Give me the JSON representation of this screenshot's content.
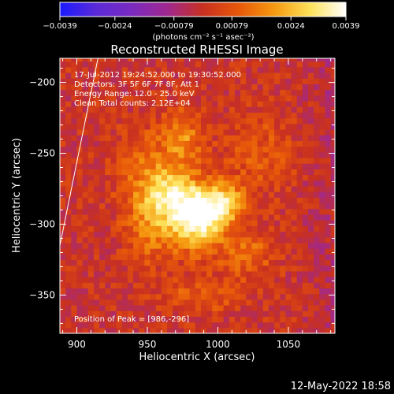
{
  "chart_data": {
    "type": "heatmap",
    "title": "Reconstructed RHESSI Image",
    "xlabel": "Heliocentric X (arcsec)",
    "ylabel": "Heliocentric Y (arcsec)",
    "xlim": [
      888,
      1083
    ],
    "ylim": [
      -377,
      -183
    ],
    "x_ticks": [
      900,
      950,
      1000,
      1050
    ],
    "y_ticks": [
      -200,
      -250,
      -300,
      -350
    ],
    "x_tick_labels": [
      "900",
      "950",
      "1000",
      "1050"
    ],
    "y_tick_labels": [
      "−200",
      "−250",
      "−300",
      "−350"
    ],
    "colorbar": {
      "range": [
        -0.0039,
        0.0039
      ],
      "ticks": [
        -0.0039,
        -0.0024,
        -0.00079,
        0.00079,
        0.0024,
        0.0039
      ],
      "tick_labels": [
        "−0.0039",
        "−0.0024",
        "−0.00079",
        "0.00079",
        "0.0024",
        "0.0039"
      ],
      "unit_label": "(photons cm⁻² s⁻¹ asec⁻²)",
      "colors": [
        "#1a1aff",
        "#5a2ad8",
        "#7a2ac0",
        "#a02890",
        "#c83020",
        "#e8580a",
        "#f59a10",
        "#fde25a",
        "#ffffff"
      ]
    },
    "annotations": [
      "17-Jul-2012 19:24:52.000 to 19:30:52.000",
      "Detectors: 3F 5F 6F 7F 8F, Att 1",
      "Energy Range: 12.0 - 25.0 keV",
      "Clean     Total counts: 2.12E+04"
    ],
    "peak_label": "Position of Peak = [986,-296]",
    "peak": [
      986,
      -296
    ],
    "sources": [
      {
        "x": 986,
        "y": -296,
        "sigma_x": 12,
        "sigma_y": 14,
        "amp": 0.0039
      },
      {
        "x": 1005,
        "y": -285,
        "sigma_x": 10,
        "sigma_y": 10,
        "amp": 0.0026
      },
      {
        "x": 968,
        "y": -278,
        "sigma_x": 14,
        "sigma_y": 12,
        "amp": 0.0022
      },
      {
        "x": 975,
        "y": -240,
        "sigma_x": 10,
        "sigma_y": 14,
        "amp": 0.0016
      },
      {
        "x": 955,
        "y": -300,
        "sigma_x": 14,
        "sigma_y": 18,
        "amp": 0.0016
      },
      {
        "x": 1020,
        "y": -320,
        "sigma_x": 14,
        "sigma_y": 12,
        "amp": 0.0012
      },
      {
        "x": 990,
        "y": -350,
        "sigma_x": 20,
        "sigma_y": 8,
        "amp": 0.001
      },
      {
        "x": 950,
        "y": -260,
        "sigma_x": 16,
        "sigma_y": 20,
        "amp": 0.0011
      },
      {
        "x": 1030,
        "y": -250,
        "sigma_x": 18,
        "sigma_y": 20,
        "amp": 0.0008
      }
    ],
    "background": 0.0001,
    "limb_line": {
      "x": [
        888,
        915
      ],
      "y": [
        -315,
        -183
      ]
    }
  },
  "footer_timestamp": "12-May-2022 18:58"
}
